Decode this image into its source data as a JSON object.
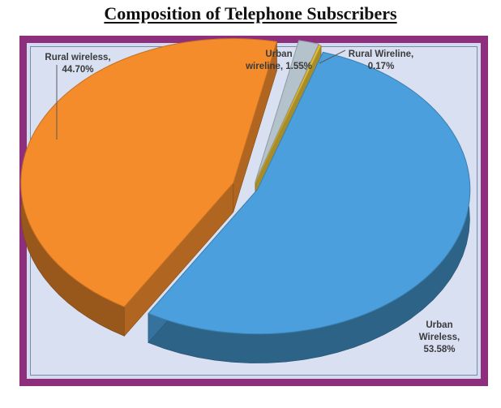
{
  "chart_data": {
    "type": "pie",
    "title": "Composition of Telephone Subscribers",
    "slices": [
      {
        "name": "Urban Wireless",
        "label_lines": [
          "Urban",
          "Wireless,",
          "53.58%"
        ],
        "value": 53.58,
        "color": "#4a9fdc"
      },
      {
        "name": "Rural wireless",
        "label_lines": [
          "Rural wireless,",
          "44.70%"
        ],
        "value": 44.7,
        "color": "#f58c2c"
      },
      {
        "name": "Urban wireline",
        "label_lines": [
          "Urban",
          "wireline, 1.55%"
        ],
        "value": 1.55,
        "color": "#b4c2cc"
      },
      {
        "name": "Rural Wireline",
        "label_lines": [
          "Rural Wireline,",
          "0.17%"
        ],
        "value": 0.17,
        "color": "#e8c23a"
      }
    ],
    "legend": "none",
    "style": "3d-exploded"
  }
}
